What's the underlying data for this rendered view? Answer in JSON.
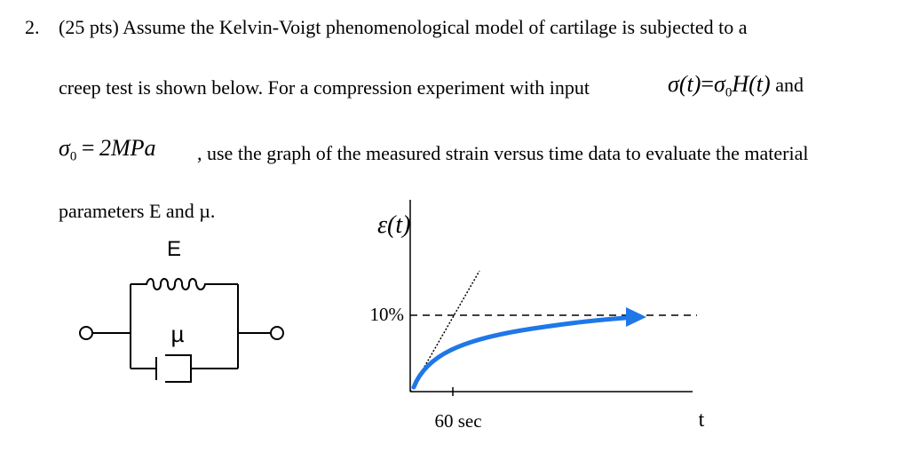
{
  "problem": {
    "number": "2.",
    "lines": [
      "(25 pts) Assume the Kelvin-Voigt phenomenological model of cartilage is subjected to a",
      "creep test is shown below. For a compression experiment with input",
      ", use the graph of the measured strain versus time data to evaluate the material",
      "parameters E and µ."
    ],
    "input_eq": {
      "lhs": "σ(t)",
      "eq": "=",
      "sigma": "σ",
      "sub": "0",
      "rhs": "H(t)",
      "after": "and"
    },
    "stress_eq": {
      "sigma": "σ",
      "sub": "0",
      "eq": "=",
      "value": "2MPa"
    }
  },
  "diagram": {
    "spring_label": "E",
    "dashpot_label": "µ"
  },
  "graph": {
    "y_label": "ε(t)",
    "level_label": "10%",
    "time_label": "60 sec",
    "x_label": "t"
  }
}
